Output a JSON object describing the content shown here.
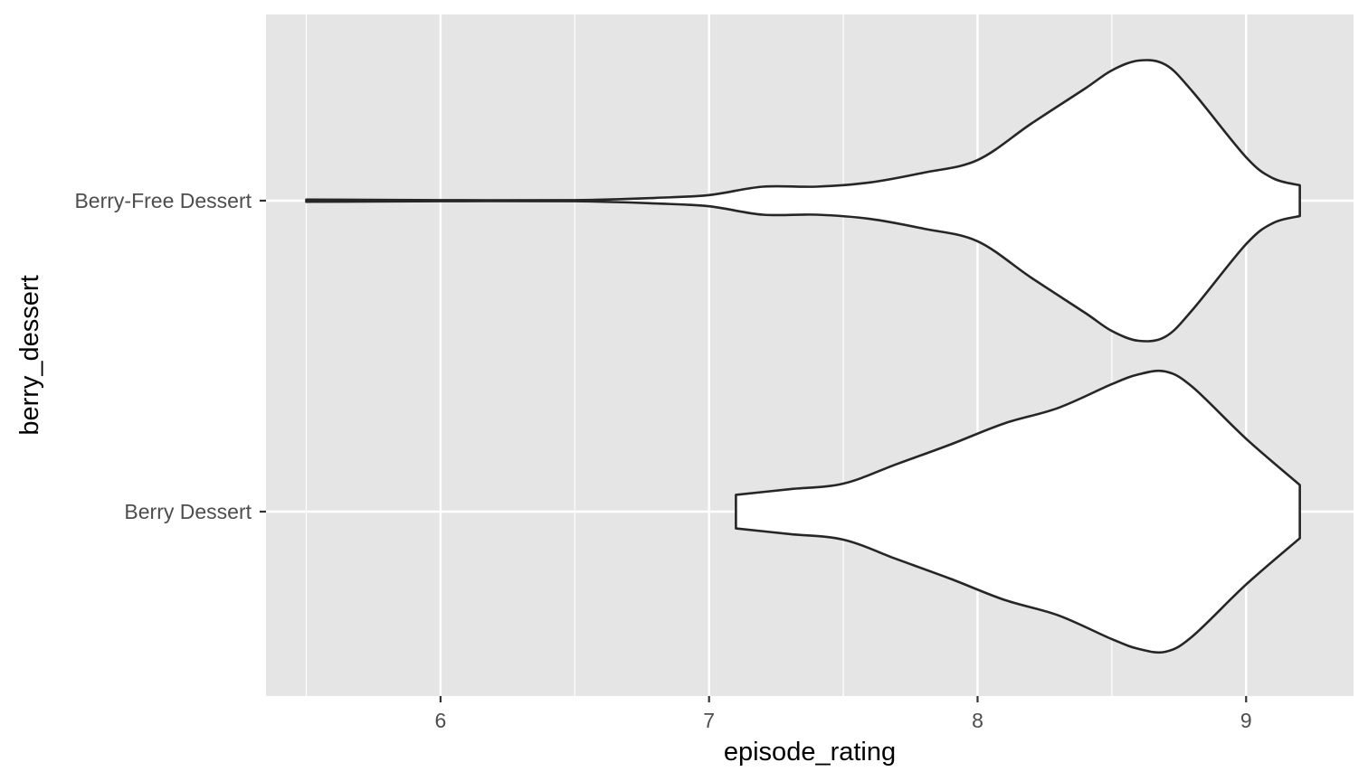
{
  "chart_data": {
    "type": "violin",
    "orientation": "horizontal",
    "title": "",
    "xlabel": "episode_rating",
    "ylabel": "berry_dessert",
    "xlim": [
      5.35,
      9.4
    ],
    "x_ticks": [
      6,
      7,
      8,
      9
    ],
    "x_minor_ticks": [
      5.5,
      6.5,
      7.5,
      8.5
    ],
    "categories": [
      "Berry-Free Dessert",
      "Berry Dessert"
    ],
    "grid": true,
    "legend": "none",
    "colors": {
      "panel_background": "#e5e5e5",
      "grid": "#ffffff",
      "violin_fill": "#ffffff",
      "violin_outline": "#262626",
      "tick_label": "#4d4d4d"
    },
    "series": [
      {
        "category": "Berry-Free Dessert",
        "range": [
          5.5,
          9.2
        ],
        "density_profile": [
          [
            5.5,
            0.008
          ],
          [
            6.0,
            0.004
          ],
          [
            6.5,
            0.004
          ],
          [
            6.8,
            0.02
          ],
          [
            7.0,
            0.04
          ],
          [
            7.2,
            0.1
          ],
          [
            7.4,
            0.1
          ],
          [
            7.6,
            0.13
          ],
          [
            7.8,
            0.2
          ],
          [
            8.0,
            0.29
          ],
          [
            8.2,
            0.55
          ],
          [
            8.4,
            0.8
          ],
          [
            8.5,
            0.93
          ],
          [
            8.6,
            1.0
          ],
          [
            8.7,
            0.97
          ],
          [
            8.8,
            0.78
          ],
          [
            9.0,
            0.31
          ],
          [
            9.1,
            0.16
          ],
          [
            9.2,
            0.11
          ]
        ]
      },
      {
        "category": "Berry Dessert",
        "range": [
          7.1,
          9.2
        ],
        "density_profile": [
          [
            7.1,
            0.12
          ],
          [
            7.3,
            0.16
          ],
          [
            7.5,
            0.2
          ],
          [
            7.7,
            0.34
          ],
          [
            7.9,
            0.48
          ],
          [
            8.1,
            0.63
          ],
          [
            8.3,
            0.74
          ],
          [
            8.5,
            0.91
          ],
          [
            8.6,
            0.98
          ],
          [
            8.7,
            1.0
          ],
          [
            8.8,
            0.89
          ],
          [
            9.0,
            0.52
          ],
          [
            9.2,
            0.19
          ]
        ]
      }
    ]
  }
}
